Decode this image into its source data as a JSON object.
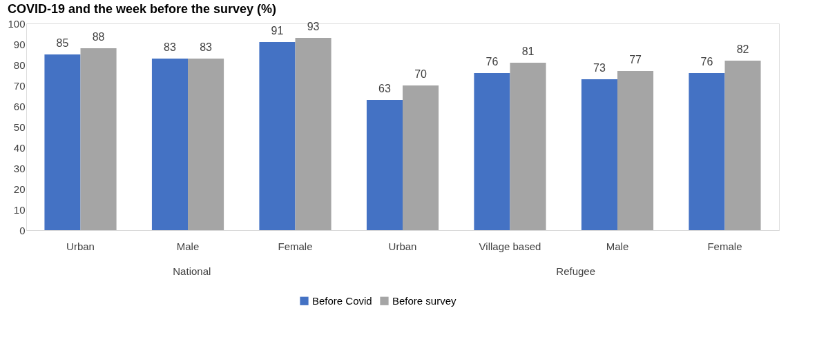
{
  "chart_data": {
    "type": "bar",
    "title": "COVID-19 and the week before the survey (%)",
    "categories": [
      "Urban",
      "Male",
      "Female",
      "Urban",
      "Village based",
      "Male",
      "Female"
    ],
    "series": [
      {
        "name": "Before Covid",
        "color": "#4472c4",
        "values": [
          85,
          83,
          91,
          63,
          76,
          73,
          76
        ]
      },
      {
        "name": "Before survey",
        "color": "#a5a5a5",
        "values": [
          88,
          83,
          93,
          70,
          81,
          77,
          82
        ]
      }
    ],
    "ylim": [
      0,
      100
    ],
    "yticks": [
      0,
      10,
      20,
      30,
      40,
      50,
      60,
      70,
      80,
      90,
      100
    ],
    "data_labels": true,
    "grid": false,
    "legend": "bottom",
    "annotations": [
      "National",
      "Refugee"
    ]
  }
}
